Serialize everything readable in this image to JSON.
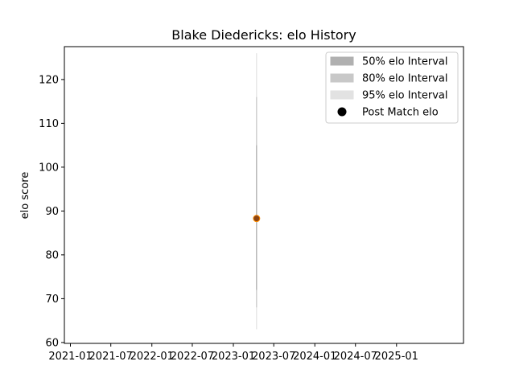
{
  "chart_data": {
    "type": "scatter",
    "title": "Blake Diedericks: elo History",
    "xlabel": "",
    "ylabel": "elo score",
    "x_tick_labels": [
      "2021-01",
      "2021-07",
      "2022-01",
      "2022-07",
      "2023-01",
      "2023-07",
      "2024-01",
      "2024-07",
      "2025-01"
    ],
    "y_ticks": [
      60,
      70,
      80,
      90,
      100,
      110,
      120
    ],
    "ylim": [
      59.8,
      127.5
    ],
    "xlim": [
      "2020-12-05",
      "2025-10-28"
    ],
    "grid": false,
    "legend_position": "top-right",
    "legend": [
      {
        "label": "50% elo Interval",
        "kind": "band",
        "color": "#b0b0b0"
      },
      {
        "label": "80% elo Interval",
        "kind": "band",
        "color": "#c8c8c8"
      },
      {
        "label": "95% elo Interval",
        "kind": "band",
        "color": "#e2e2e2"
      },
      {
        "label": "Post Match elo",
        "kind": "marker",
        "color": "#000000"
      }
    ],
    "points": [
      {
        "date": "2023-04-15",
        "elo": 88.3,
        "interval_50": [
          72,
          105
        ],
        "interval_80": [
          68,
          116
        ],
        "interval_95": [
          63,
          126
        ]
      }
    ],
    "marker_fill": "#8b4513",
    "marker_edge": "#ff8c00"
  }
}
